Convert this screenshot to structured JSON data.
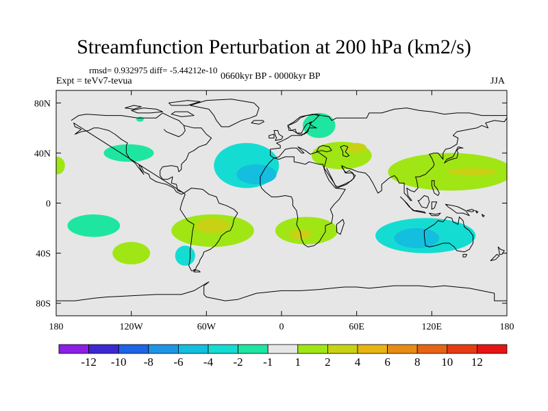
{
  "title": "Streamfunction Perturbation at 200 hPa (km2/s)",
  "stats": "rmsd= 0.932975  diff= -5.44212e-10",
  "experiment": "Expt = teVv7-tevua",
  "period": "0660kyr BP - 0000kyr BP",
  "season": "JJA",
  "axes": {
    "x_ticks": [
      {
        "value": -180,
        "label": "180"
      },
      {
        "value": -120,
        "label": "120W"
      },
      {
        "value": -60,
        "label": "60W"
      },
      {
        "value": 0,
        "label": "0"
      },
      {
        "value": 60,
        "label": "60E"
      },
      {
        "value": 120,
        "label": "120E"
      },
      {
        "value": 180,
        "label": "180"
      }
    ],
    "y_ticks": [
      {
        "value": 80,
        "label": "80N"
      },
      {
        "value": 40,
        "label": "40N"
      },
      {
        "value": 0,
        "label": "0"
      },
      {
        "value": -40,
        "label": "40S"
      },
      {
        "value": -80,
        "label": "80S"
      }
    ],
    "xlim": [
      -180,
      180
    ],
    "ylim": [
      -90,
      90
    ]
  },
  "colorbar": {
    "colors": [
      "#8c1ee6",
      "#3c28d2",
      "#1e64e6",
      "#1e96e6",
      "#14bede",
      "#14dcd2",
      "#1ee6a0",
      "#e6e6e6",
      "#a0e614",
      "#c8d214",
      "#e6b414",
      "#e68c14",
      "#e66414",
      "#e63c14",
      "#e61414"
    ],
    "labels": [
      "-12",
      "-10",
      "-8",
      "-6",
      "-4",
      "-2",
      "-1",
      "1",
      "2",
      "4",
      "6",
      "8",
      "10",
      "12"
    ]
  },
  "anomalies": [
    {
      "name": "north-atlantic-negative",
      "lon": -28,
      "lat": 30,
      "rlon": 26,
      "rlat": 18,
      "level": "-2"
    },
    {
      "name": "north-atlantic-core",
      "lon": -20,
      "lat": 23,
      "rlon": 16,
      "rlat": 8,
      "level": "-4"
    },
    {
      "name": "north-pacific-negative",
      "lon": -122,
      "lat": 40,
      "rlon": 20,
      "rlat": 7,
      "level": "-1"
    },
    {
      "name": "scandinavia-negative",
      "lon": 30,
      "lat": 62,
      "rlon": 13,
      "rlat": 10,
      "level": "-1"
    },
    {
      "name": "arctic-negative",
      "lon": -113,
      "lat": 67,
      "rlon": 3,
      "rlat": 2,
      "level": "-1"
    },
    {
      "name": "dateline-positive",
      "lon": -179,
      "lat": 30,
      "rlon": 6,
      "rlat": 7,
      "level": "2"
    },
    {
      "name": "central-asia-positive",
      "lon": 48,
      "lat": 38,
      "rlon": 24,
      "rlat": 11,
      "level": "2"
    },
    {
      "name": "caspian-positive-core",
      "lon": 60,
      "lat": 44,
      "rlon": 8,
      "rlat": 4,
      "level": "4"
    },
    {
      "name": "west-pacific-positive",
      "lon": 135,
      "lat": 25,
      "rlon": 50,
      "rlat": 15,
      "level": "2"
    },
    {
      "name": "west-pacific-core",
      "lon": 152,
      "lat": 25,
      "rlon": 20,
      "rlat": 3,
      "level": "4"
    },
    {
      "name": "south-america-positive",
      "lon": -55,
      "lat": -22,
      "rlon": 33,
      "rlat": 13,
      "level": "2"
    },
    {
      "name": "south-america-core",
      "lon": -55,
      "lat": -18,
      "rlon": 14,
      "rlat": 6,
      "level": "4"
    },
    {
      "name": "south-atlantic-africa-positive",
      "lon": 20,
      "lat": -22,
      "rlon": 25,
      "rlat": 11,
      "level": "2"
    },
    {
      "name": "south-atlantic-core",
      "lon": 15,
      "lat": -25,
      "rlon": 9,
      "rlat": 4,
      "level": "4"
    },
    {
      "name": "australia-negative",
      "lon": 115,
      "lat": -26,
      "rlon": 40,
      "rlat": 14,
      "level": "-2"
    },
    {
      "name": "australia-core",
      "lon": 108,
      "lat": -28,
      "rlon": 18,
      "rlat": 8,
      "level": "-4"
    },
    {
      "name": "south-pacific-negative",
      "lon": -150,
      "lat": -18,
      "rlon": 21,
      "rlat": 9,
      "level": "-1"
    },
    {
      "name": "southeast-pacific-positive",
      "lon": -120,
      "lat": -40,
      "rlon": 15,
      "rlat": 9,
      "level": "2"
    },
    {
      "name": "patagonia-negative",
      "lon": -77,
      "lat": -42,
      "rlon": 8,
      "rlat": 8,
      "level": "-2"
    }
  ]
}
